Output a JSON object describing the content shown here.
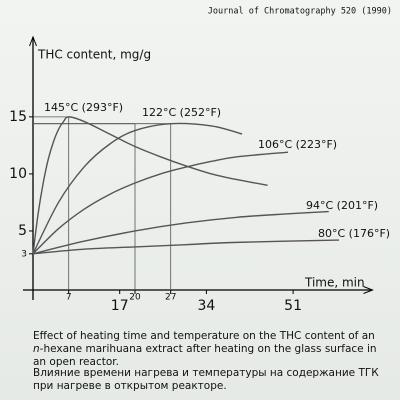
{
  "source": "Journal of Chromatography 520 (1990)",
  "chart_data": {
    "type": "line",
    "y_label": "THC content, mg/g",
    "x_label": "Time, min",
    "xlim": [
      0,
      65
    ],
    "ylim": [
      0,
      22
    ],
    "xticks_major": [
      17,
      34,
      51
    ],
    "xticks_minor": [
      7,
      20,
      27
    ],
    "yticks_major": [
      5,
      10,
      15
    ],
    "yticks_minor": [
      3
    ],
    "guides": [
      {
        "x": 7,
        "y": 15
      },
      {
        "x": 20,
        "y": 14.4
      },
      {
        "x": 27,
        "y": 14.4
      }
    ],
    "line_color": "#555555",
    "series": [
      {
        "name": "145°C (293°F)",
        "x": [
          0,
          1,
          2,
          3,
          4,
          5,
          6,
          7,
          10,
          15,
          20,
          25,
          30,
          35,
          40,
          46
        ],
        "values": [
          3,
          6.5,
          9.2,
          11.3,
          12.8,
          13.9,
          14.6,
          15,
          14.6,
          13.5,
          12.4,
          11.5,
          10.7,
          10.0,
          9.5,
          9.0
        ]
      },
      {
        "name": "122°C (252°F)",
        "x": [
          0,
          5,
          10,
          15,
          20,
          27,
          35,
          41
        ],
        "values": [
          3,
          7.5,
          10.6,
          12.6,
          13.8,
          14.4,
          14.2,
          13.5
        ]
      },
      {
        "name": "106°C (223°F)",
        "x": [
          0,
          5,
          10,
          15,
          20,
          25,
          30,
          35,
          40,
          50
        ],
        "values": [
          3,
          5.2,
          6.9,
          8.2,
          9.2,
          10.0,
          10.6,
          11.1,
          11.5,
          11.9
        ]
      },
      {
        "name": "94°C (201°F)",
        "x": [
          0,
          10,
          20,
          30,
          40,
          50,
          58
        ],
        "values": [
          3,
          4.1,
          5.0,
          5.7,
          6.2,
          6.5,
          6.7
        ]
      },
      {
        "name": "80°C (176°F)",
        "x": [
          0,
          10,
          20,
          30,
          40,
          60
        ],
        "values": [
          3,
          3.4,
          3.6,
          3.8,
          4.0,
          4.2
        ]
      }
    ]
  },
  "caption_en": [
    "Effect of heating time and temperature on the THC content of an ",
    "n",
    "-hexane marihuana extract after heating on the glass surface in an open reactor."
  ],
  "caption_ru": "Влияние времени нагрева и температуры на содержание ТГК при нагреве в открытом реакторе."
}
